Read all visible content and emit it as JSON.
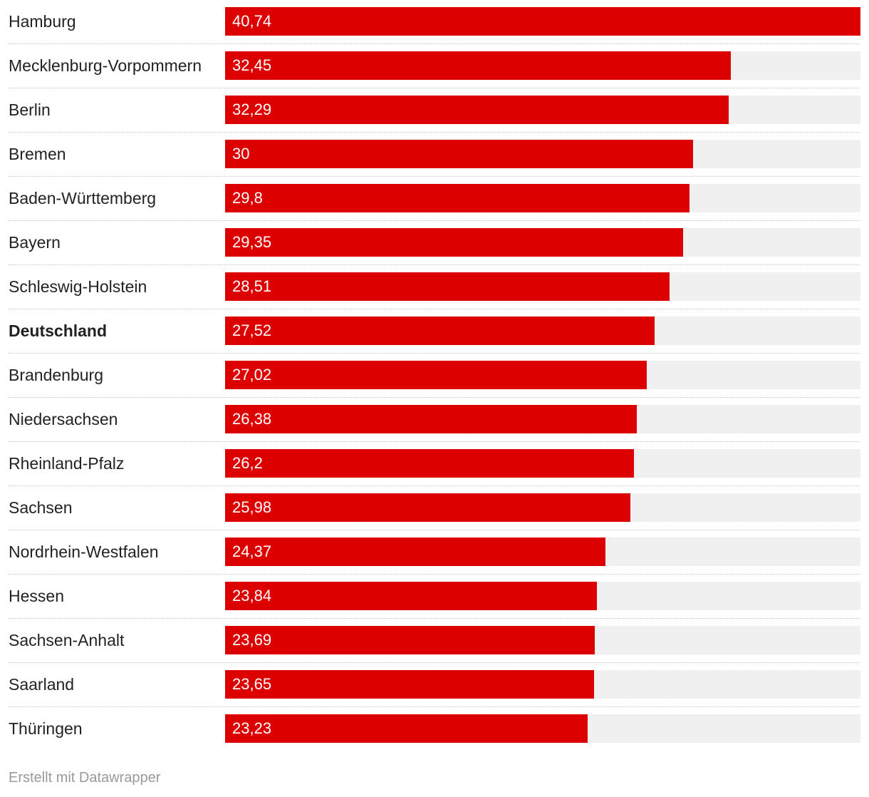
{
  "chart_data": {
    "type": "bar",
    "orientation": "horizontal",
    "categories": [
      "Hamburg",
      "Mecklenburg-Vorpommern",
      "Berlin",
      "Bremen",
      "Baden-Württemberg",
      "Bayern",
      "Schleswig-Holstein",
      "Deutschland",
      "Brandenburg",
      "Niedersachsen",
      "Rheinland-Pfalz",
      "Sachsen",
      "Nordrhein-Westfalen",
      "Hessen",
      "Sachsen-Anhalt",
      "Saarland",
      "Thüringen"
    ],
    "values": [
      40.74,
      32.45,
      32.29,
      30,
      29.8,
      29.35,
      28.51,
      27.52,
      27.02,
      26.38,
      26.2,
      25.98,
      24.37,
      23.84,
      23.69,
      23.65,
      23.23
    ],
    "value_labels": [
      "40,74",
      "32,45",
      "32,29",
      "30",
      "29,8",
      "29,35",
      "28,51",
      "27,52",
      "27,02",
      "26,38",
      "26,2",
      "25,98",
      "24,37",
      "23,84",
      "23,69",
      "23,65",
      "23,23"
    ],
    "highlighted": [
      "Deutschland"
    ],
    "xlim": [
      0,
      40.74
    ],
    "title": "",
    "xlabel": "",
    "ylabel": "",
    "grid": false,
    "colors": {
      "bar": "#dc0000",
      "track": "#f0f0f0"
    }
  },
  "footer": {
    "credit": "Erstellt mit Datawrapper"
  }
}
